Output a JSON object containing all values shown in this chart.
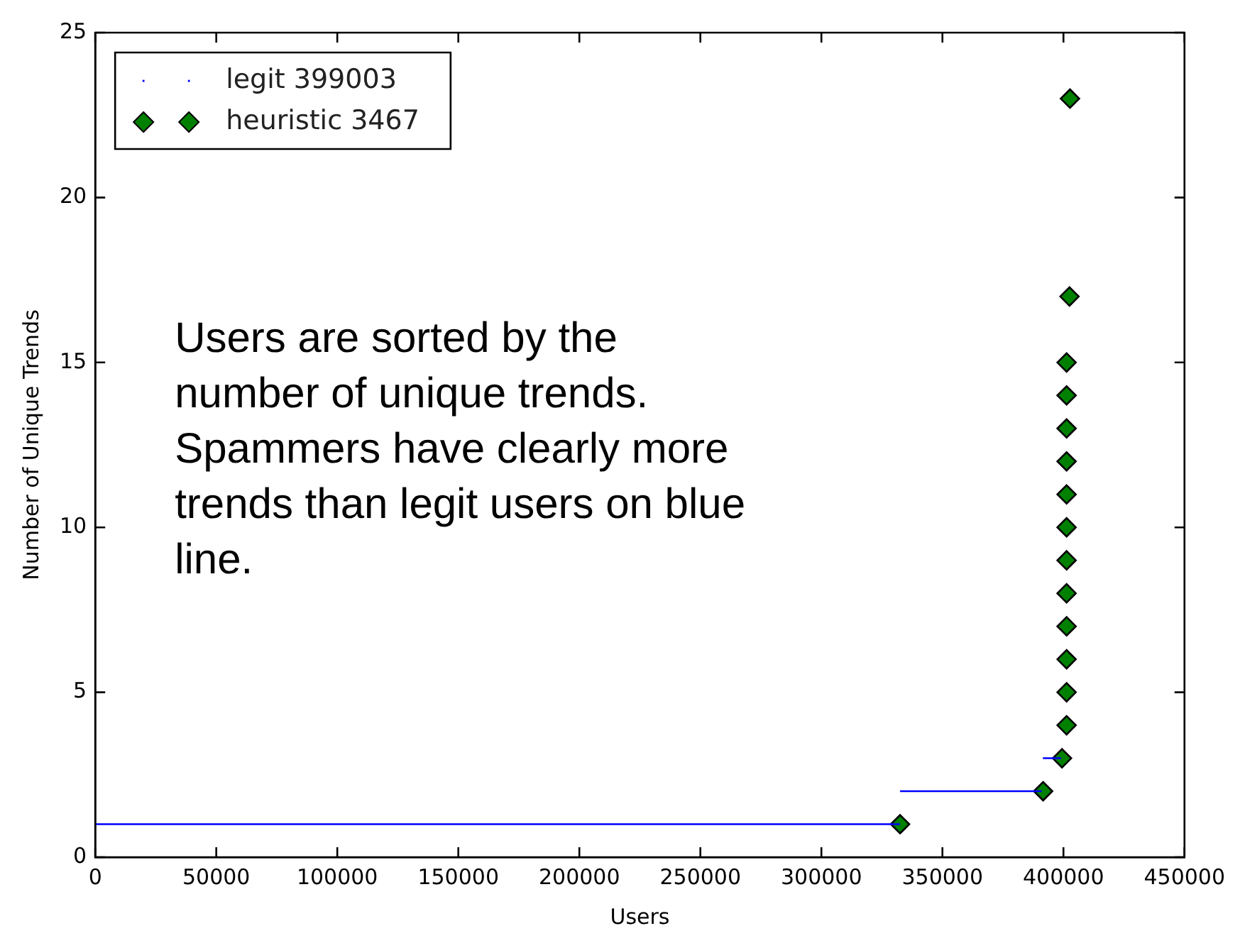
{
  "chart_data": {
    "type": "scatter",
    "xlabel": "Users",
    "ylabel": "Number of Unique Trends",
    "xlim": [
      0,
      450000
    ],
    "xticks": [
      0,
      50000,
      100000,
      150000,
      200000,
      250000,
      300000,
      350000,
      400000,
      450000
    ],
    "ylim": [
      0,
      25
    ],
    "yticks": [
      0,
      5,
      10,
      15,
      20,
      25
    ],
    "grid": false,
    "legend": "top left",
    "annotations": [
      "Users are sorted by the\nnumber of unique trends.\nSpammers have clearly more\ntrends than legit users on blue\nline."
    ],
    "series": [
      {
        "name": "legit 399003",
        "type": "line",
        "color": "#0000ff",
        "marker": "none",
        "line_style": "solid",
        "x": [
          0,
          332500,
          null,
          332500,
          391000,
          null,
          391500,
          399000
        ],
        "values": [
          1,
          1,
          null,
          2,
          2,
          null,
          3,
          3
        ]
      },
      {
        "name": "heuristic 3467",
        "type": "scatter",
        "color": "#008000",
        "marker": "diamond",
        "x": [
          332500,
          391600,
          399400,
          401300,
          401300,
          401300,
          401300,
          401300,
          401300,
          401300,
          401300,
          401300,
          401300,
          401300,
          401300,
          402500,
          402700
        ],
        "values": [
          1,
          2,
          3,
          4,
          5,
          6,
          7,
          8,
          9,
          10,
          11,
          12,
          13,
          14,
          15,
          17,
          23
        ]
      }
    ]
  }
}
